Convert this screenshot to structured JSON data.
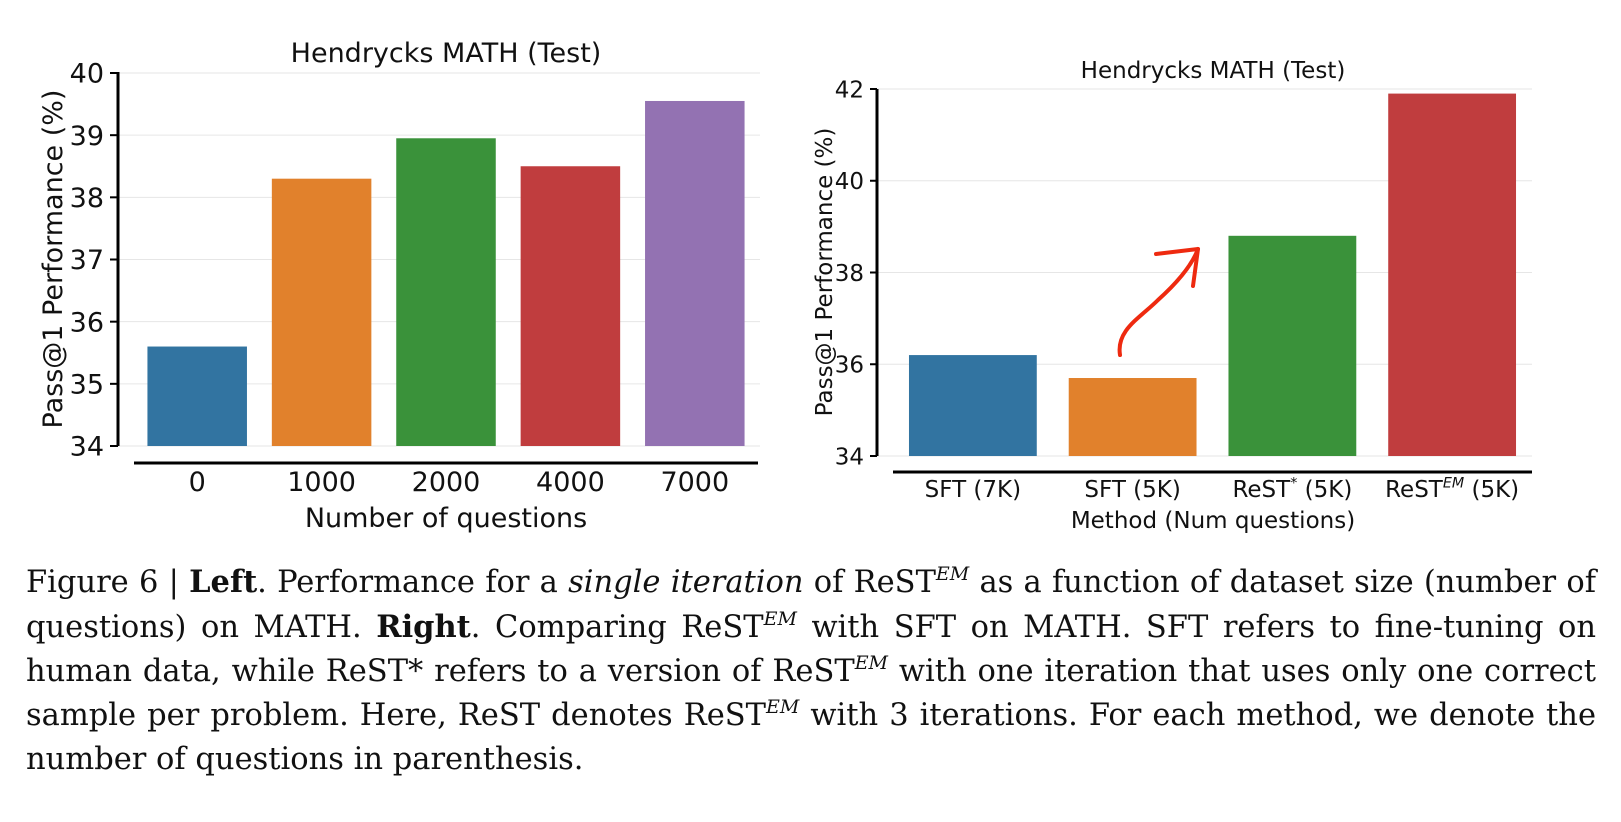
{
  "chart_data": [
    {
      "type": "bar",
      "title": "Hendrycks MATH (Test)",
      "xlabel": "Number of questions",
      "ylabel": "Pass@1 Performance (%)",
      "categories": [
        "0",
        "1000",
        "2000",
        "4000",
        "7000"
      ],
      "values": [
        35.6,
        38.3,
        38.95,
        38.5,
        39.55
      ],
      "colors": [
        "#3274a1",
        "#e1812c",
        "#3a923a",
        "#c03d3e",
        "#9372b2"
      ],
      "ylim": [
        34,
        40
      ],
      "yticks": [
        "34",
        "35",
        "36",
        "37",
        "38",
        "39",
        "40"
      ],
      "grid": true
    },
    {
      "type": "bar",
      "title": "Hendrycks MATH (Test)",
      "xlabel": "Method (Num questions)",
      "ylabel": "Pass@1 Performance (%)",
      "categories": [
        {
          "base": "SFT (7K)",
          "sup": "",
          "tail": ""
        },
        {
          "base": "SFT (5K)",
          "sup": "",
          "tail": ""
        },
        {
          "base": "ReST",
          "sup": "*",
          "tail": " (5K)"
        },
        {
          "base": "ReST",
          "sup": "EM",
          "tail": " (5K)"
        }
      ],
      "values": [
        36.2,
        35.7,
        38.8,
        41.9
      ],
      "colors": [
        "#3274a1",
        "#e1812c",
        "#3a923a",
        "#c03d3e"
      ],
      "ylim": [
        34,
        42
      ],
      "yticks": [
        "34",
        "36",
        "38",
        "40",
        "42"
      ],
      "grid": true,
      "annotation": "red hand-drawn arrow from SFT (5K) to ReST* (5K)"
    }
  ],
  "caption": {
    "fig": "Figure 6 | ",
    "left_label": "Left",
    "t1": ". Performance for a ",
    "single_iteration": "single iteration",
    "t2": " of ReST",
    "em": "EM",
    "t3": " as a function of dataset size (number of questions) on MATH. ",
    "right_label": "Right",
    "t4": ". Comparing ReST",
    "t5": " with SFT on MATH. SFT refers to fine-tuning on human data, while ReST* refers to a version of ReST",
    "t6": " with one iteration that uses only one correct sample per problem. Here, ReST denotes ReST",
    "t7": " with 3 iterations. For each method, we denote the number of questions in parenthesis."
  }
}
